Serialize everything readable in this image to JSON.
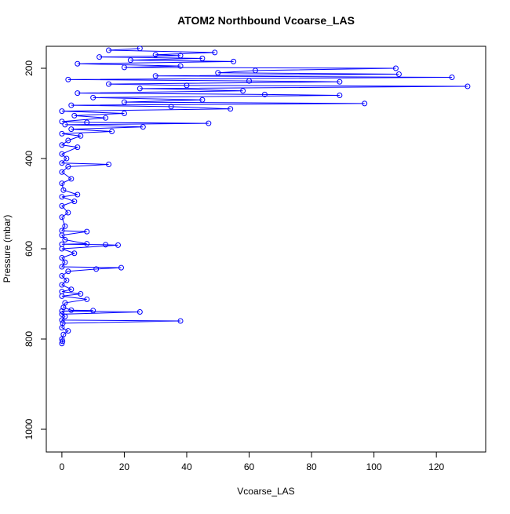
{
  "chart_data": {
    "type": "line",
    "title": "ATOM2 Northbound Vcoarse_LAS",
    "x_label": "Vcoarse_LAS",
    "y_label": "Pressure (mbar)",
    "series": [
      {
        "color": "#0000ff",
        "x": [
          0,
          0.2,
          0,
          0.5,
          2,
          0,
          0.3,
          38,
          0,
          1,
          0,
          25,
          0,
          10,
          3,
          0.5,
          1,
          8,
          0,
          6,
          0,
          3,
          0,
          1.5,
          0,
          2,
          11,
          19,
          0,
          1,
          0,
          4,
          0,
          18,
          14,
          0,
          8,
          1,
          0,
          8,
          0,
          1,
          0,
          2,
          0,
          4,
          0,
          5,
          0.5,
          0,
          3,
          0,
          2,
          15,
          0,
          1.5,
          0,
          5,
          0,
          2,
          6,
          0,
          16,
          3,
          26,
          1,
          47,
          8,
          0,
          14,
          4,
          20,
          0,
          54,
          35,
          3,
          97,
          20,
          45,
          10,
          89,
          65,
          5,
          58,
          25,
          130,
          40,
          15,
          89,
          60,
          2,
          125,
          30,
          108,
          50,
          62,
          107,
          20,
          38,
          5,
          55,
          22,
          45,
          12,
          38,
          30,
          49,
          15,
          25
        ],
        "values": [
          810,
          805,
          800,
          790,
          782,
          775,
          765,
          760,
          758,
          750,
          745,
          740,
          738,
          737,
          736,
          730,
          720,
          712,
          705,
          700,
          695,
          690,
          680,
          670,
          660,
          650,
          645,
          642,
          640,
          630,
          620,
          610,
          600,
          592,
          591,
          590,
          589,
          580,
          570,
          562,
          560,
          550,
          530,
          520,
          505,
          495,
          485,
          480,
          470,
          455,
          445,
          430,
          418,
          413,
          410,
          400,
          390,
          375,
          370,
          360,
          350,
          345,
          340,
          335,
          330,
          325,
          322,
          320,
          318,
          310,
          305,
          300,
          295,
          290,
          285,
          282,
          278,
          275,
          270,
          265,
          260,
          258,
          255,
          250,
          245,
          240,
          238,
          235,
          230,
          228,
          225,
          220,
          217,
          213,
          210,
          205,
          200,
          198,
          195,
          190,
          185,
          182,
          178,
          175,
          172,
          170,
          165,
          160,
          156
        ]
      }
    ],
    "xlim": [
      -5.0,
      135.8
    ],
    "xticks": [
      0,
      20,
      40,
      60,
      80,
      100,
      120
    ],
    "ylim": [
      1050.4,
      151.3
    ],
    "yticks": [
      200,
      400,
      600,
      800,
      1000
    ]
  }
}
